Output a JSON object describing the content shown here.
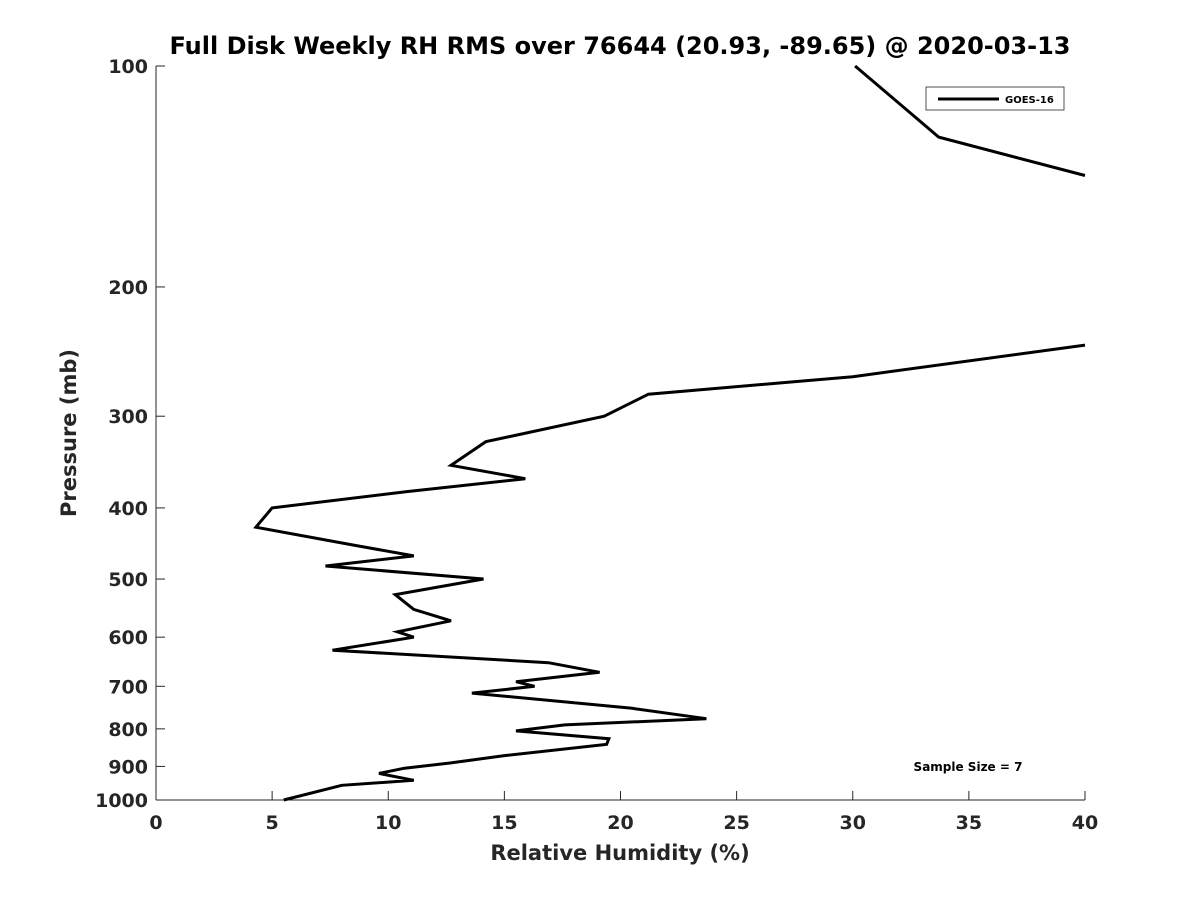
{
  "chart_data": {
    "type": "line",
    "title": "Full Disk Weekly RH RMS over 76644 (20.93, -89.65) @ 2020-03-13",
    "xlabel": "Relative Humidity (%)",
    "ylabel": "Pressure (mb)",
    "xlim": [
      0,
      40
    ],
    "ylim": [
      1000,
      100
    ],
    "yscale": "log",
    "x_ticks": [
      0,
      5,
      10,
      15,
      20,
      25,
      30,
      35,
      40
    ],
    "y_ticks": [
      100,
      200,
      300,
      400,
      500,
      600,
      700,
      800,
      900,
      1000
    ],
    "x_tick_labels": [
      "0",
      "5",
      "10",
      "15",
      "20",
      "25",
      "30",
      "35",
      "40"
    ],
    "y_tick_labels": [
      "100",
      "200",
      "300",
      "400",
      "500",
      "600",
      "700",
      "800",
      "900",
      "1000"
    ],
    "grid": false,
    "legend_position": "top-right",
    "annotation": "Sample Size = 7",
    "series": [
      {
        "name": "GOES-16",
        "color": "#000000",
        "segments": [
          [
            {
              "x": 30.1,
              "p": 100
            },
            {
              "x": 33.7,
              "p": 125
            },
            {
              "x": 40.0,
              "p": 141
            }
          ],
          [
            {
              "x": 40.0,
              "p": 240
            },
            {
              "x": 30.0,
              "p": 265
            },
            {
              "x": 21.2,
              "p": 280
            },
            {
              "x": 19.3,
              "p": 300
            },
            {
              "x": 14.2,
              "p": 325
            },
            {
              "x": 12.7,
              "p": 350
            },
            {
              "x": 15.9,
              "p": 365
            },
            {
              "x": 10.8,
              "p": 380
            },
            {
              "x": 5.0,
              "p": 400
            },
            {
              "x": 4.3,
              "p": 425
            },
            {
              "x": 8.6,
              "p": 450
            },
            {
              "x": 11.1,
              "p": 465
            },
            {
              "x": 7.3,
              "p": 480
            },
            {
              "x": 14.1,
              "p": 500
            },
            {
              "x": 10.3,
              "p": 525
            },
            {
              "x": 11.1,
              "p": 550
            },
            {
              "x": 12.7,
              "p": 570
            },
            {
              "x": 10.4,
              "p": 590
            },
            {
              "x": 11.1,
              "p": 600
            },
            {
              "x": 7.6,
              "p": 625
            },
            {
              "x": 16.9,
              "p": 650
            },
            {
              "x": 19.1,
              "p": 670
            },
            {
              "x": 15.5,
              "p": 690
            },
            {
              "x": 16.3,
              "p": 700
            },
            {
              "x": 13.6,
              "p": 715
            },
            {
              "x": 20.5,
              "p": 750
            },
            {
              "x": 23.7,
              "p": 775
            },
            {
              "x": 17.6,
              "p": 790
            },
            {
              "x": 15.5,
              "p": 805
            },
            {
              "x": 19.5,
              "p": 825
            },
            {
              "x": 19.4,
              "p": 840
            },
            {
              "x": 15.0,
              "p": 870
            },
            {
              "x": 12.7,
              "p": 890
            },
            {
              "x": 10.7,
              "p": 905
            },
            {
              "x": 9.6,
              "p": 920
            },
            {
              "x": 11.1,
              "p": 940
            },
            {
              "x": 8.0,
              "p": 955
            },
            {
              "x": 5.5,
              "p": 1000
            }
          ]
        ]
      }
    ]
  }
}
